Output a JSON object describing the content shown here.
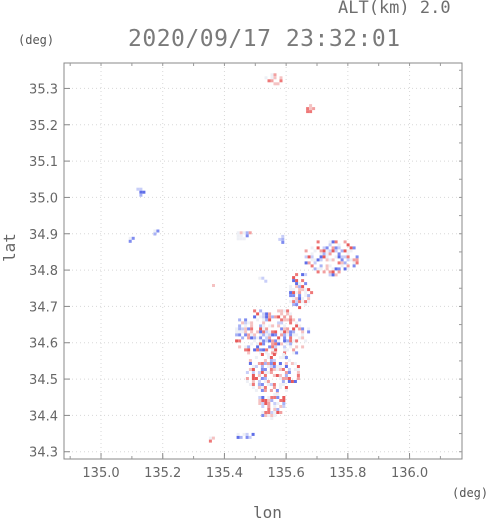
{
  "header": {
    "altitude_label": "ALT(km) 2.0",
    "timestamp": "2020/09/17 23:32:01"
  },
  "chart_data": {
    "type": "heatmap",
    "title": "2020/09/17 23:32:01",
    "xlabel": "lon",
    "ylabel": "lat",
    "x_unit": "(deg)",
    "y_unit": "(deg)",
    "xlim": [
      134.88,
      136.17
    ],
    "ylim": [
      34.28,
      35.37
    ],
    "x_ticks": [
      "135.0",
      "135.2",
      "135.4",
      "135.6",
      "135.8",
      "136.0"
    ],
    "y_ticks": [
      "34.3",
      "34.4",
      "34.5",
      "34.6",
      "34.7",
      "34.8",
      "34.9",
      "35.0",
      "35.1",
      "35.2",
      "35.3"
    ],
    "grid": true,
    "colors": {
      "positive": "#f06a6a",
      "negative": "#6a78f0",
      "frame": "#888888"
    },
    "echo_regions": [
      {
        "lon": 135.12,
        "lat": 35.02,
        "w": 0.03,
        "h": 0.03,
        "tone": "negative"
      },
      {
        "lon": 135.09,
        "lat": 34.89,
        "w": 0.02,
        "h": 0.02,
        "tone": "negative"
      },
      {
        "lon": 135.17,
        "lat": 34.91,
        "w": 0.02,
        "h": 0.02,
        "tone": "negative"
      },
      {
        "lon": 135.55,
        "lat": 35.33,
        "w": 0.06,
        "h": 0.04,
        "tone": "positive"
      },
      {
        "lon": 135.67,
        "lat": 35.25,
        "w": 0.03,
        "h": 0.03,
        "tone": "positive"
      },
      {
        "lon": 135.46,
        "lat": 34.9,
        "w": 0.06,
        "h": 0.03,
        "tone": "mixed"
      },
      {
        "lon": 135.58,
        "lat": 34.89,
        "w": 0.03,
        "h": 0.03,
        "tone": "mixed"
      },
      {
        "lon": 135.74,
        "lat": 34.84,
        "w": 0.18,
        "h": 0.1,
        "tone": "mixed"
      },
      {
        "lon": 135.64,
        "lat": 34.75,
        "w": 0.08,
        "h": 0.1,
        "tone": "mixed"
      },
      {
        "lon": 135.55,
        "lat": 34.63,
        "w": 0.25,
        "h": 0.14,
        "tone": "mixed"
      },
      {
        "lon": 135.55,
        "lat": 34.52,
        "w": 0.18,
        "h": 0.12,
        "tone": "mixed"
      },
      {
        "lon": 135.55,
        "lat": 34.43,
        "w": 0.1,
        "h": 0.08,
        "tone": "mixed"
      },
      {
        "lon": 135.52,
        "lat": 34.78,
        "w": 0.04,
        "h": 0.02,
        "tone": "mixed"
      },
      {
        "lon": 135.36,
        "lat": 34.34,
        "w": 0.04,
        "h": 0.02,
        "tone": "positive"
      },
      {
        "lon": 135.46,
        "lat": 34.35,
        "w": 0.08,
        "h": 0.02,
        "tone": "negative"
      },
      {
        "lon": 135.36,
        "lat": 34.76,
        "w": 0.02,
        "h": 0.02,
        "tone": "mixed"
      }
    ]
  }
}
